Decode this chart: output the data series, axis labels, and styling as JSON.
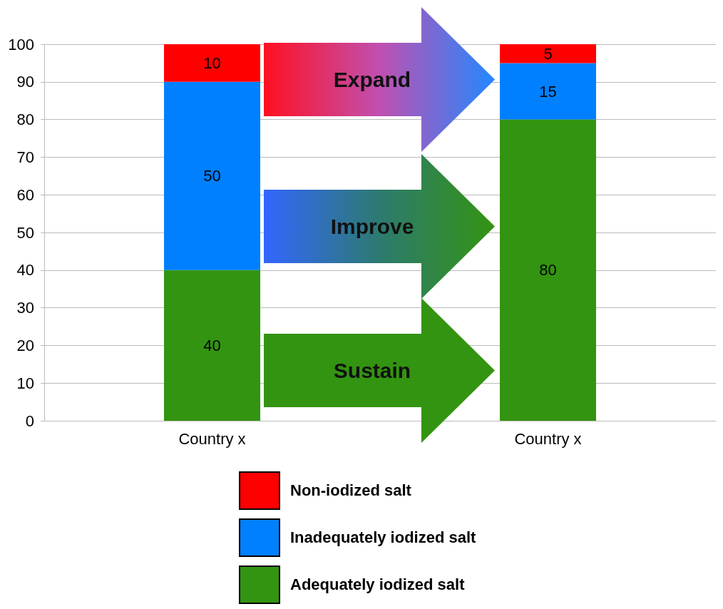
{
  "chart_data": {
    "type": "bar",
    "stacked": true,
    "categories": [
      "Country x",
      "Country x"
    ],
    "series": [
      {
        "name": "Adequately iodized salt",
        "color": "#339411",
        "values": [
          40,
          80
        ]
      },
      {
        "name": "Inadequately iodized salt",
        "color": "#0080ff",
        "values": [
          50,
          15
        ]
      },
      {
        "name": "Non-iodized salt",
        "color": "#ff0000",
        "values": [
          10,
          5
        ]
      }
    ],
    "ylim": [
      0,
      100
    ],
    "yticks": [
      0,
      10,
      20,
      30,
      40,
      50,
      60,
      70,
      80,
      90,
      100
    ],
    "grid": "y",
    "data_labels": true,
    "legend": "bottom",
    "annotations": [
      "Expand",
      "Improve",
      "Sustain"
    ]
  }
}
